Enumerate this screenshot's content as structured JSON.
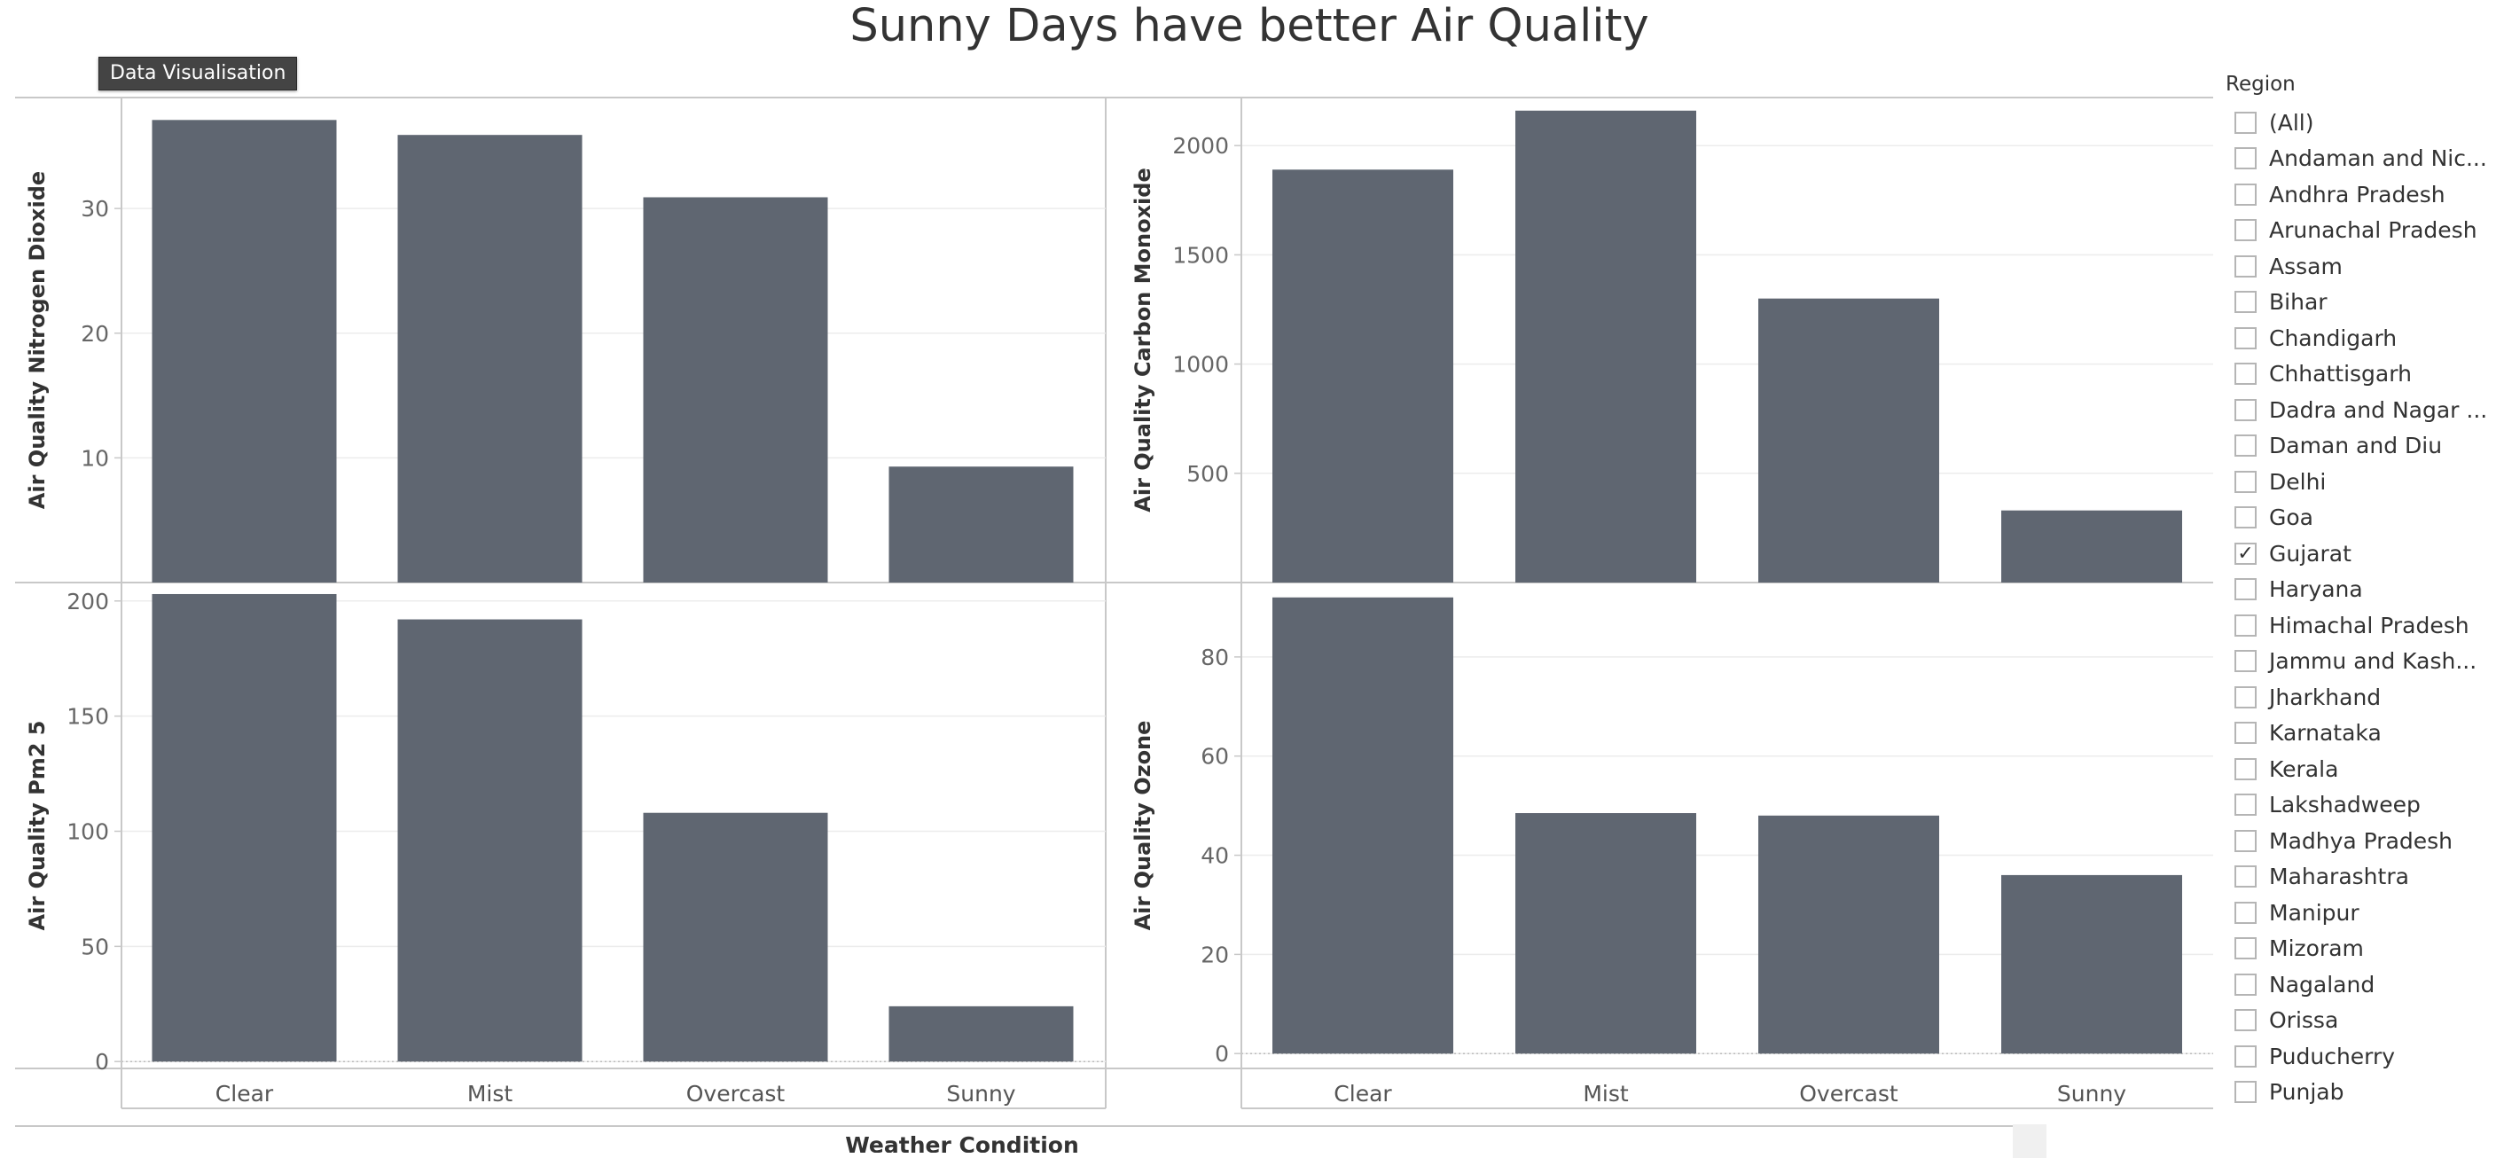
{
  "title": "Sunny Days have better Air Quality",
  "tooltip": "Data Visualisation",
  "chart_data": [
    {
      "type": "bar",
      "categories": [
        "Clear",
        "Mist",
        "Overcast",
        "Sunny"
      ],
      "values": [
        37.1,
        35.9,
        30.9,
        9.3
      ],
      "ylabel": "Air Quality Nitrogen Dioxide",
      "yticks": [
        10,
        20,
        30
      ],
      "ylim": [
        0,
        38.9
      ],
      "xlabel": "Weather Condition"
    },
    {
      "type": "bar",
      "categories": [
        "Clear",
        "Mist",
        "Overcast",
        "Sunny"
      ],
      "values": [
        1890,
        2160,
        1300,
        330
      ],
      "ylabel": "Air Quality Carbon Monoxide",
      "yticks": [
        500,
        1000,
        1500,
        2000
      ],
      "ylim": [
        0,
        2220
      ],
      "xlabel": "Weather Condition"
    },
    {
      "type": "bar",
      "categories": [
        "Clear",
        "Mist",
        "Overcast",
        "Sunny"
      ],
      "values": [
        203,
        192,
        108,
        24
      ],
      "ylabel": "Air Quality Pm2 5",
      "yticks": [
        0,
        50,
        100,
        150,
        200
      ],
      "ylim": [
        -3,
        208
      ],
      "xlabel": "Weather Condition"
    },
    {
      "type": "bar",
      "categories": [
        "Clear",
        "Mist",
        "Overcast",
        "Sunny"
      ],
      "values": [
        92,
        48.5,
        48,
        36
      ],
      "ylabel": "Air Quality Ozone",
      "yticks": [
        0,
        20,
        40,
        60,
        80
      ],
      "ylim": [
        -3,
        95
      ],
      "xlabel": "Weather Condition"
    }
  ],
  "colors": {
    "bar": "#5f6671",
    "grid": "#ececec",
    "axis": "#c8c8c8"
  },
  "filter": {
    "title": "Region",
    "items": [
      {
        "label": "(All)",
        "checked": false
      },
      {
        "label": "Andaman and Nic...",
        "checked": false
      },
      {
        "label": "Andhra Pradesh",
        "checked": false
      },
      {
        "label": "Arunachal Pradesh",
        "checked": false
      },
      {
        "label": "Assam",
        "checked": false
      },
      {
        "label": "Bihar",
        "checked": false
      },
      {
        "label": "Chandigarh",
        "checked": false
      },
      {
        "label": "Chhattisgarh",
        "checked": false
      },
      {
        "label": "Dadra and Nagar ...",
        "checked": false
      },
      {
        "label": "Daman and Diu",
        "checked": false
      },
      {
        "label": "Delhi",
        "checked": false
      },
      {
        "label": "Goa",
        "checked": false
      },
      {
        "label": "Gujarat",
        "checked": true
      },
      {
        "label": "Haryana",
        "checked": false
      },
      {
        "label": "Himachal Pradesh",
        "checked": false
      },
      {
        "label": "Jammu and Kash...",
        "checked": false
      },
      {
        "label": "Jharkhand",
        "checked": false
      },
      {
        "label": "Karnataka",
        "checked": false
      },
      {
        "label": "Kerala",
        "checked": false
      },
      {
        "label": "Lakshadweep",
        "checked": false
      },
      {
        "label": "Madhya Pradesh",
        "checked": false
      },
      {
        "label": "Maharashtra",
        "checked": false
      },
      {
        "label": "Manipur",
        "checked": false
      },
      {
        "label": "Mizoram",
        "checked": false
      },
      {
        "label": "Nagaland",
        "checked": false
      },
      {
        "label": "Orissa",
        "checked": false
      },
      {
        "label": "Puducherry",
        "checked": false
      },
      {
        "label": "Punjab",
        "checked": false
      }
    ]
  }
}
